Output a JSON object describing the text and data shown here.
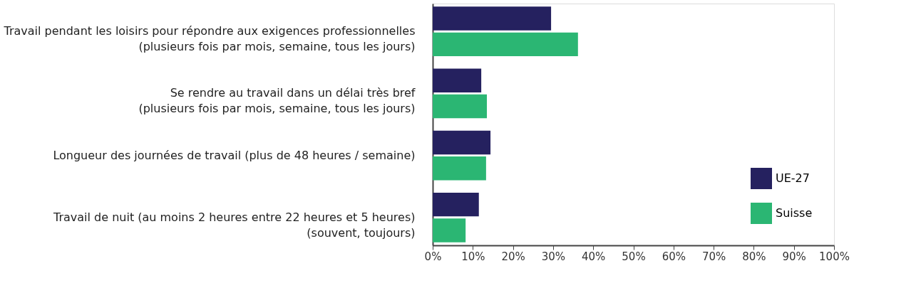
{
  "chart_data": {
    "type": "bar",
    "orientation": "horizontal",
    "categories": [
      "Travail pendant les loisirs pour répondre aux exigences professionnelles\n(plusieurs fois par mois, semaine, tous les jours)",
      "Se rendre au travail dans un délai très bref\n(plusieurs fois par mois, semaine, tous les jours)",
      "Longueur des journées de travail (plus de 48 heures / semaine)",
      "Travail de nuit (au moins 2 heures entre 22 heures et 5 heures)\n(souvent, toujours)"
    ],
    "series": [
      {
        "name": "UE-27",
        "color": "#25215f",
        "values": [
          29.5,
          12.1,
          14.4,
          11.5
        ]
      },
      {
        "name": "Suisse",
        "color": "#2bb673",
        "values": [
          36.2,
          13.5,
          13.3,
          8.2
        ]
      }
    ],
    "xlim": [
      0,
      100
    ],
    "xticks": [
      {
        "value": 0,
        "label": "0%"
      },
      {
        "value": 10,
        "label": "10%"
      },
      {
        "value": 20,
        "label": "20%"
      },
      {
        "value": 30,
        "label": "30%"
      },
      {
        "value": 40,
        "label": "40%"
      },
      {
        "value": 50,
        "label": "50%"
      },
      {
        "value": 60,
        "label": "60%"
      },
      {
        "value": 70,
        "label": "70%"
      },
      {
        "value": 80,
        "label": "80%"
      },
      {
        "value": 90,
        "label": "90%"
      },
      {
        "value": 100,
        "label": "100%"
      }
    ],
    "grid": false,
    "legend": "bottom right"
  }
}
